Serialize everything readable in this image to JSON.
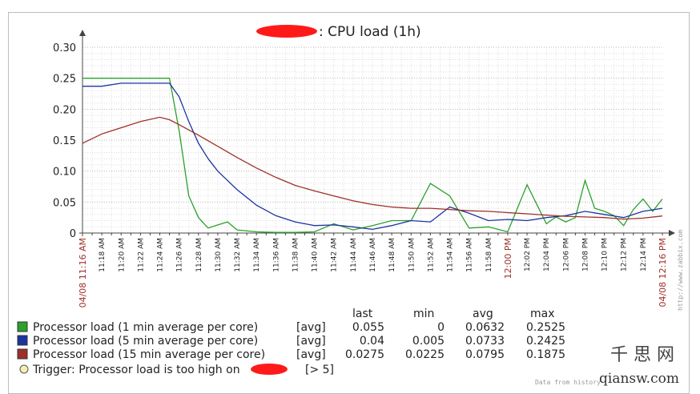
{
  "chart_data": {
    "type": "line",
    "title": ": CPU load (1h)",
    "ylim": [
      0,
      0.3
    ],
    "yticks": [
      "0",
      "0.05",
      "0.10",
      "0.15",
      "0.20",
      "0.25",
      "0.30"
    ],
    "x_start_label": "04/08 11:16 AM",
    "x_end_label": "04/08 12:16 PM",
    "x_mid_label": "12:00 PM",
    "xticks": [
      "11:18 AM",
      "11:20 AM",
      "11:22 AM",
      "11:24 AM",
      "11:26 AM",
      "11:28 AM",
      "11:30 AM",
      "11:32 AM",
      "11:34 AM",
      "11:36 AM",
      "11:38 AM",
      "11:40 AM",
      "11:42 AM",
      "11:44 AM",
      "11:46 AM",
      "11:48 AM",
      "11:50 AM",
      "11:52 AM",
      "11:54 AM",
      "11:56 AM",
      "11:58 AM",
      "12:02 PM",
      "12:04 PM",
      "12:06 PM",
      "12:08 PM",
      "12:10 PM",
      "12:12 PM",
      "12:14 PM"
    ],
    "grid": true,
    "series": [
      {
        "name": "Processor load (1 min average per core)",
        "color": "#2aa12a",
        "x": [
          0,
          1,
          3,
          5,
          7,
          9,
          10,
          11,
          12,
          13,
          14,
          15,
          16,
          18,
          20,
          22,
          24,
          26,
          28,
          30,
          32,
          34,
          36,
          38,
          40,
          42,
          44,
          46,
          48,
          49,
          50,
          51,
          52,
          53,
          54,
          55,
          56,
          57,
          58,
          59,
          60
        ],
        "values": [
          0.25,
          0.25,
          0.25,
          0.25,
          0.25,
          0.25,
          0.165,
          0.06,
          0.025,
          0.008,
          0.013,
          0.018,
          0.005,
          0.002,
          0.001,
          0.001,
          0.002,
          0.015,
          0.005,
          0.012,
          0.02,
          0.02,
          0.08,
          0.06,
          0.008,
          0.01,
          0.002,
          0.078,
          0.015,
          0.026,
          0.018,
          0.025,
          0.085,
          0.04,
          0.035,
          0.028,
          0.012,
          0.038,
          0.055,
          0.035,
          0.055
        ]
      },
      {
        "name": "Processor load (5 min average per core)",
        "color": "#1c34a0",
        "x": [
          0,
          2,
          4,
          6,
          8,
          9,
          10,
          11,
          12,
          13,
          14,
          15,
          16,
          18,
          20,
          22,
          24,
          26,
          28,
          30,
          32,
          34,
          36,
          38,
          40,
          42,
          44,
          46,
          48,
          50,
          52,
          54,
          56,
          58,
          60
        ],
        "values": [
          0.237,
          0.237,
          0.242,
          0.242,
          0.242,
          0.242,
          0.22,
          0.18,
          0.145,
          0.12,
          0.1,
          0.085,
          0.07,
          0.045,
          0.028,
          0.018,
          0.012,
          0.013,
          0.01,
          0.006,
          0.012,
          0.02,
          0.018,
          0.042,
          0.032,
          0.02,
          0.022,
          0.02,
          0.025,
          0.028,
          0.035,
          0.03,
          0.025,
          0.035,
          0.04
        ]
      },
      {
        "name": "Processor load (15 min average per core)",
        "color": "#9e2f2a",
        "x": [
          0,
          2,
          4,
          6,
          8,
          9,
          10,
          12,
          14,
          16,
          18,
          20,
          22,
          24,
          26,
          28,
          30,
          32,
          34,
          36,
          38,
          40,
          42,
          44,
          46,
          48,
          50,
          52,
          54,
          56,
          58,
          60
        ],
        "values": [
          0.145,
          0.16,
          0.17,
          0.18,
          0.187,
          0.183,
          0.175,
          0.158,
          0.14,
          0.122,
          0.105,
          0.09,
          0.077,
          0.068,
          0.06,
          0.052,
          0.046,
          0.042,
          0.04,
          0.04,
          0.038,
          0.036,
          0.035,
          0.033,
          0.031,
          0.029,
          0.027,
          0.026,
          0.025,
          0.0225,
          0.024,
          0.0275
        ]
      }
    ]
  },
  "legend": {
    "headers": {
      "last": "last",
      "min": "min",
      "avg": "avg",
      "max": "max"
    },
    "rows": [
      {
        "name": "Processor load (1 min average per core)",
        "agg": "[avg]",
        "last": "0.055",
        "min": "0",
        "avg": "0.0632",
        "max": "0.2525",
        "color": "#2aa12a"
      },
      {
        "name": "Processor load (5 min average per core)",
        "agg": "[avg]",
        "last": "0.04",
        "min": "0.005",
        "avg": "0.0733",
        "max": "0.2425",
        "color": "#1c34a0"
      },
      {
        "name": "Processor load (15 min average per core)",
        "agg": "[avg]",
        "last": "0.0275",
        "min": "0.0225",
        "avg": "0.0795",
        "max": "0.1875",
        "color": "#9e2f2a"
      }
    ],
    "trigger": {
      "label": "Trigger: Processor load is too high on",
      "threshold": "[> 5]",
      "color": "#f5f0b0"
    }
  },
  "side_credit": "http://www.zabbix.com",
  "bottom_credit": "Data from history",
  "watermark": {
    "top": "千 思 网",
    "bottom": "qiansw.com"
  }
}
